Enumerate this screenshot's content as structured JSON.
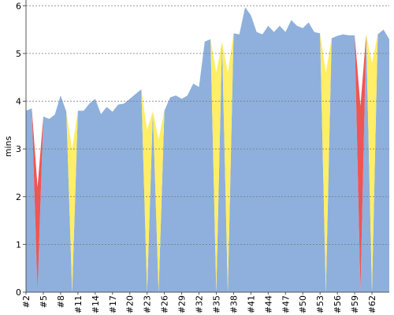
{
  "chart_data": {
    "type": "stacked_area",
    "y_label": "mins",
    "categories": [
      "#2",
      null,
      null,
      "#5",
      null,
      null,
      "#8",
      null,
      null,
      "#11",
      null,
      null,
      "#14",
      null,
      null,
      "#17",
      null,
      null,
      "#20",
      null,
      null,
      "#23",
      null,
      null,
      "#26",
      null,
      null,
      "#29",
      null,
      null,
      "#32",
      null,
      null,
      "#35",
      null,
      null,
      "#38",
      null,
      null,
      "#41",
      null,
      null,
      "#44",
      null,
      null,
      "#47",
      null,
      null,
      "#50",
      null,
      null,
      "#53",
      null,
      null,
      "#56",
      null,
      null,
      "#59",
      null,
      null,
      "#62",
      null,
      null,
      null
    ],
    "series": [
      {
        "color": "#8fb0dc",
        "values": [
          3.8,
          3.85,
          0,
          3.68,
          3.63,
          3.72,
          4.12,
          3.78,
          0,
          3.8,
          3.8,
          3.95,
          4.05,
          3.73,
          3.88,
          3.78,
          3.93,
          3.95,
          4.05,
          4.15,
          4.25,
          0,
          3.8,
          0,
          3.8,
          4.08,
          4.12,
          4.05,
          4.12,
          4.37,
          4.3,
          5.25,
          5.3,
          0,
          5.25,
          0,
          5.42,
          5.4,
          5.97,
          5.8,
          5.45,
          5.4,
          5.58,
          5.45,
          5.58,
          5.45,
          5.7,
          5.58,
          5.53,
          5.65,
          5.45,
          5.42,
          0,
          5.32,
          5.37,
          5.4,
          5.38,
          5.38,
          0,
          5.4,
          0,
          5.4,
          5.5,
          5.3
        ]
      },
      {
        "color": "#ffee66",
        "values": [
          0,
          0,
          0,
          0,
          0,
          0,
          0,
          0,
          3.0,
          0,
          0,
          0,
          0,
          0,
          0,
          0,
          0,
          0,
          0,
          0,
          0,
          3.4,
          0,
          3.2,
          0,
          0,
          0,
          0,
          0,
          0,
          0,
          0,
          0,
          4.6,
          0,
          4.6,
          0,
          0,
          0,
          0,
          0,
          0,
          0,
          0,
          0,
          0,
          0,
          0,
          0,
          0,
          0,
          0,
          4.6,
          0,
          0,
          0,
          0,
          0,
          0,
          0,
          4.8,
          0,
          0,
          0
        ]
      },
      {
        "color": "#ee5555",
        "values": [
          0,
          0,
          2.2,
          0,
          0,
          0,
          0,
          0,
          0,
          0,
          0,
          0,
          0,
          0,
          0,
          0,
          0,
          0,
          0,
          0,
          0,
          0,
          0,
          0,
          0,
          0,
          0,
          0,
          0,
          0,
          0,
          0,
          0,
          0,
          0,
          0,
          0,
          0,
          0,
          0,
          0,
          0,
          0,
          0,
          0,
          0,
          0,
          0,
          0,
          0,
          0,
          0,
          0,
          0,
          0,
          0,
          0,
          0,
          3.9,
          0,
          0,
          0,
          0,
          0
        ]
      }
    ],
    "ylim": [
      0,
      6.12
    ],
    "yticks": [
      0,
      1,
      2,
      3,
      4,
      5,
      6
    ],
    "grid": true
  }
}
